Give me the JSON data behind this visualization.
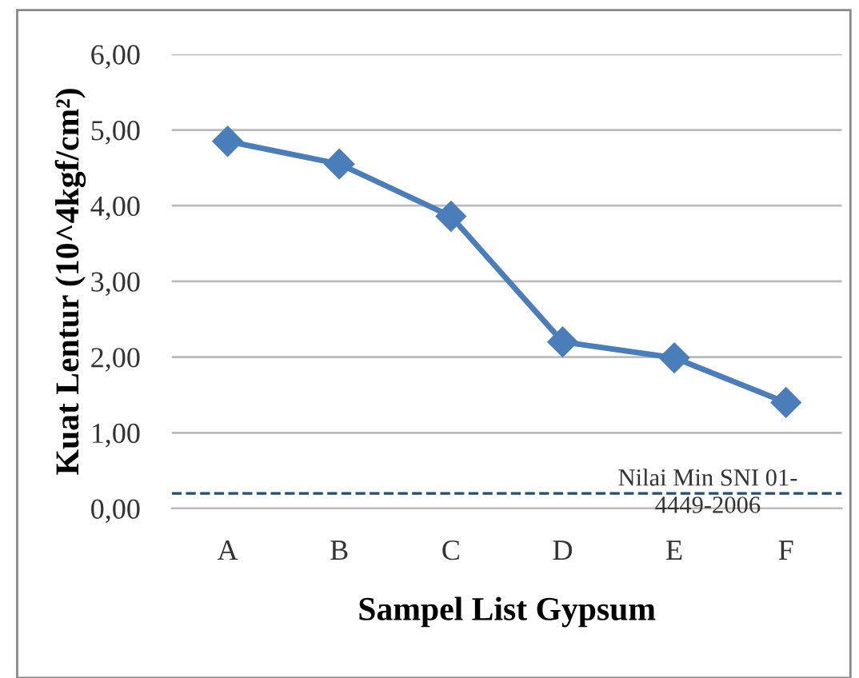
{
  "chart_data": {
    "type": "line",
    "xlabel": "Sampel List Gypsum",
    "ylabel": "Kuat Lentur (10^4kgf/cm²)",
    "categories": [
      "A",
      "B",
      "C",
      "D",
      "E",
      "F"
    ],
    "series": [
      {
        "color": "#4a7ebb",
        "values": [
          4.85,
          4.55,
          3.86,
          2.2,
          1.99,
          1.4
        ]
      }
    ],
    "ylim": [
      0,
      6
    ],
    "yticks": [
      {
        "value": 0,
        "label": "0,00"
      },
      {
        "value": 1,
        "label": "1,00"
      },
      {
        "value": 2,
        "label": "2,00"
      },
      {
        "value": 3,
        "label": "3,00"
      },
      {
        "value": 4,
        "label": "4,00"
      },
      {
        "value": 5,
        "label": "5,00"
      },
      {
        "value": 6,
        "label": "6,00"
      }
    ],
    "ref_lines": [
      {
        "axis": "y",
        "value": 0.2,
        "label": "Nilai Min SNI 01-\n4449-2006",
        "color": "#1f4e79",
        "line_style": "dashed"
      }
    ],
    "grid": "y",
    "legend": false,
    "marker": "diamond",
    "line_style": "solid"
  }
}
